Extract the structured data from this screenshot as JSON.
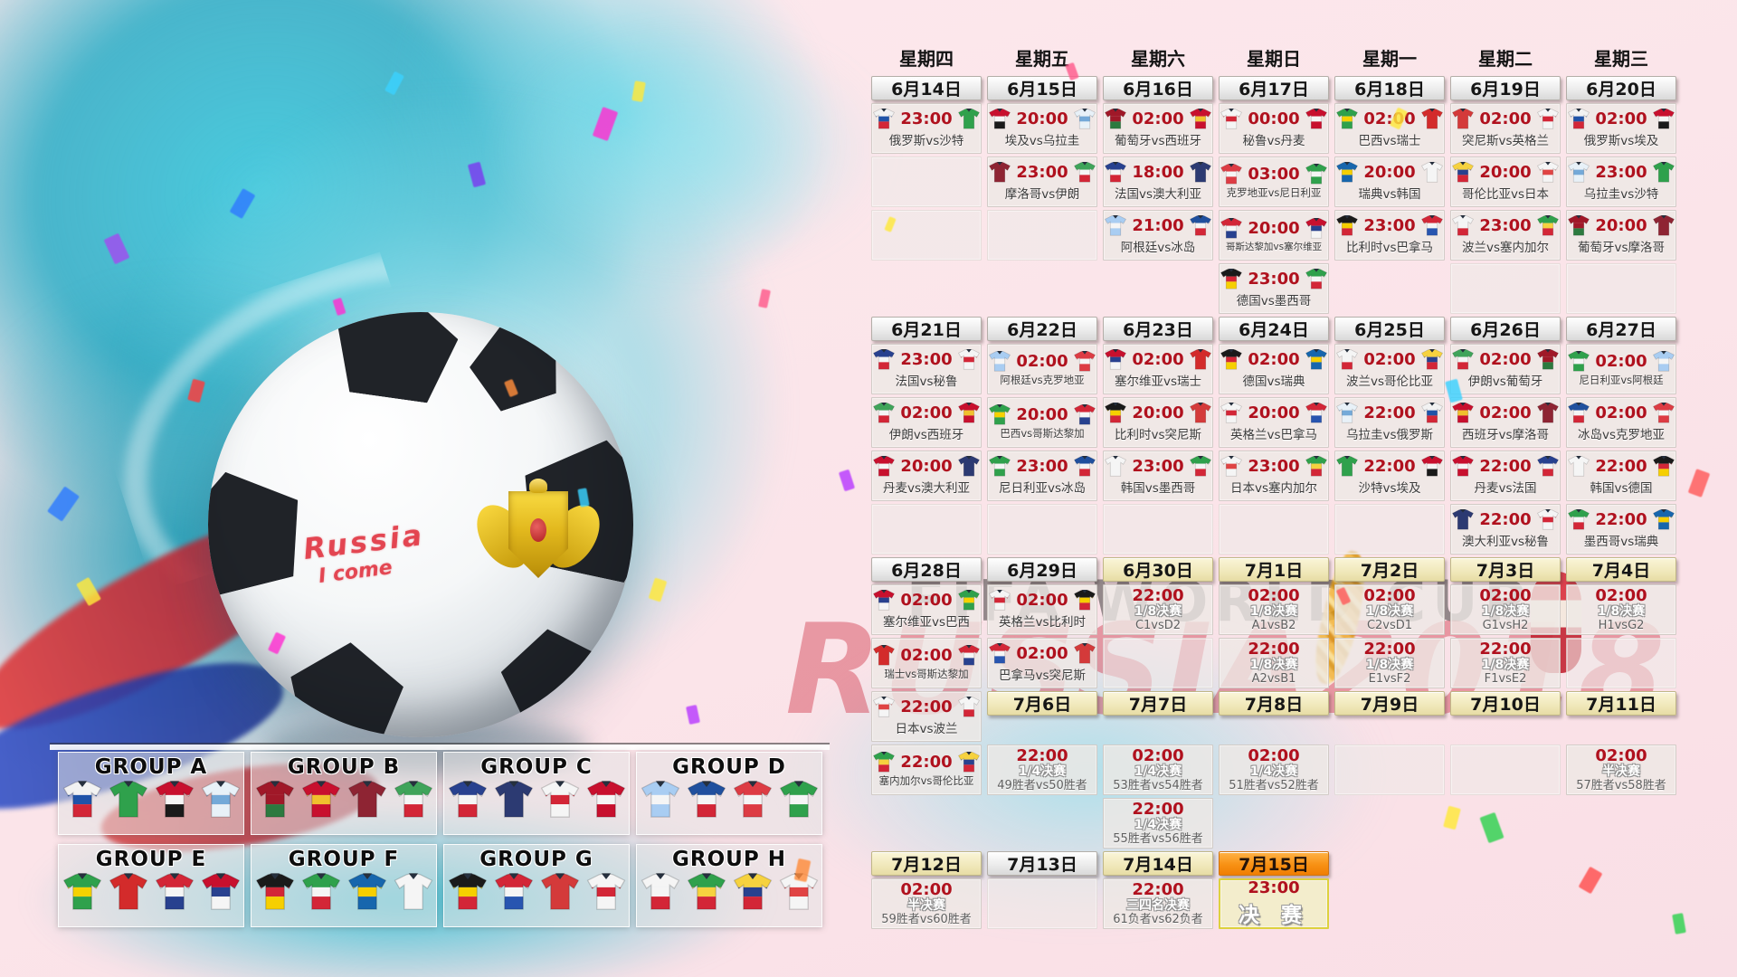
{
  "watermarks": {
    "fifa": "FIFA WORLD CUP",
    "russia": "RUSSIA2018"
  },
  "ball": {
    "graffiti_1": "Russia",
    "graffiti_2": "I come"
  },
  "teams": {
    "russia": {
      "name": "俄罗斯",
      "colors": [
        "#f2f2f2",
        "#1f53a8",
        "#d32637"
      ]
    },
    "saudi": {
      "name": "沙特",
      "colors": [
        "#2fa14c"
      ]
    },
    "egypt": {
      "name": "埃及",
      "colors": [
        "#c8102e",
        "#f5f5f5",
        "#1a1a1a"
      ]
    },
    "uruguay": {
      "name": "乌拉圭",
      "colors": [
        "#e8f1f8",
        "#74a9d8",
        "#e8f1f8"
      ]
    },
    "portugal": {
      "name": "葡萄牙",
      "colors": [
        "#a01828",
        "#a01828",
        "#2c7a3f"
      ]
    },
    "spain": {
      "name": "西班牙",
      "colors": [
        "#c8102e",
        "#f0c02e",
        "#c8102e"
      ]
    },
    "morocco": {
      "name": "摩洛哥",
      "colors": [
        "#8e2433"
      ]
    },
    "iran": {
      "name": "伊朗",
      "colors": [
        "#3fa45a",
        "#f5f5f5",
        "#d32637"
      ]
    },
    "france": {
      "name": "法国",
      "colors": [
        "#28418f",
        "#f5f5f5",
        "#d32637"
      ]
    },
    "australia": {
      "name": "澳大利亚",
      "colors": [
        "#2c3a72"
      ]
    },
    "peru": {
      "name": "秘鲁",
      "colors": [
        "#f5f5f5",
        "#d32637",
        "#f5f5f5"
      ]
    },
    "denmark": {
      "name": "丹麦",
      "colors": [
        "#c8102e",
        "#f5f5f5",
        "#c8102e"
      ]
    },
    "croatia": {
      "name": "克罗地亚",
      "colors": [
        "#dd3c44",
        "#f5f5f5",
        "#dd3c44"
      ]
    },
    "nigeria": {
      "name": "尼日利亚",
      "colors": [
        "#2fa14c",
        "#f5f5f5",
        "#2fa14c"
      ]
    },
    "brazil": {
      "name": "巴西",
      "colors": [
        "#2fa14c",
        "#f6d200",
        "#2fa14c"
      ]
    },
    "switzerland": {
      "name": "瑞士",
      "colors": [
        "#d32b2b"
      ]
    },
    "sweden": {
      "name": "瑞典",
      "colors": [
        "#1766ad",
        "#f6cf00",
        "#1766ad"
      ]
    },
    "korea": {
      "name": "韩国",
      "colors": [
        "#f5f5f5"
      ]
    },
    "tunisia": {
      "name": "突尼斯",
      "colors": [
        "#d43a3a"
      ]
    },
    "england": {
      "name": "英格兰",
      "colors": [
        "#f5f5f5",
        "#d32637",
        "#f5f5f5"
      ]
    },
    "colombia": {
      "name": "哥伦比亚",
      "colors": [
        "#f6d23f",
        "#28418f",
        "#d32637"
      ]
    },
    "japan": {
      "name": "日本",
      "colors": [
        "#f5f5f5",
        "#e04444",
        "#f5f5f5"
      ]
    },
    "poland": {
      "name": "波兰",
      "colors": [
        "#f5f5f5",
        "#f5f5f5",
        "#d32637"
      ]
    },
    "senegal": {
      "name": "塞内加尔",
      "colors": [
        "#2fa14c",
        "#f6d23f",
        "#d32637"
      ]
    },
    "germany": {
      "name": "德国",
      "colors": [
        "#1a1a1a",
        "#d32637",
        "#f6cf00"
      ]
    },
    "mexico": {
      "name": "墨西哥",
      "colors": [
        "#2fa14c",
        "#f5f5f5",
        "#d32637"
      ]
    },
    "argentina": {
      "name": "阿根廷",
      "colors": [
        "#a9cdf2",
        "#f5f5f5",
        "#a9cdf2"
      ]
    },
    "iceland": {
      "name": "冰岛",
      "colors": [
        "#20509e",
        "#f5f5f5",
        "#d32637"
      ]
    },
    "costarica": {
      "name": "哥斯达黎加",
      "colors": [
        "#d32637",
        "#f5f5f5",
        "#28418f"
      ]
    },
    "serbia": {
      "name": "塞尔维亚",
      "colors": [
        "#c8102e",
        "#28418f",
        "#f5f5f5"
      ]
    },
    "belgium": {
      "name": "比利时",
      "colors": [
        "#1a1a1a",
        "#f6cf00",
        "#d32637"
      ]
    },
    "panama": {
      "name": "巴拿马",
      "colors": [
        "#d32637",
        "#f5f5f5",
        "#2855b0"
      ]
    }
  },
  "groups": [
    {
      "name": "GROUP A",
      "teams": [
        "russia",
        "saudi",
        "egypt",
        "uruguay"
      ]
    },
    {
      "name": "GROUP B",
      "teams": [
        "portugal",
        "spain",
        "morocco",
        "iran"
      ]
    },
    {
      "name": "GROUP C",
      "teams": [
        "france",
        "australia",
        "peru",
        "denmark"
      ]
    },
    {
      "name": "GROUP D",
      "teams": [
        "argentina",
        "iceland",
        "croatia",
        "nigeria"
      ]
    },
    {
      "name": "GROUP E",
      "teams": [
        "brazil",
        "switzerland",
        "costarica",
        "serbia"
      ]
    },
    {
      "name": "GROUP F",
      "teams": [
        "germany",
        "mexico",
        "sweden",
        "korea"
      ]
    },
    {
      "name": "GROUP G",
      "teams": [
        "belgium",
        "panama",
        "tunisia",
        "england"
      ]
    },
    {
      "name": "GROUP H",
      "teams": [
        "poland",
        "senegal",
        "colombia",
        "japan"
      ]
    }
  ],
  "calendar": {
    "rows": [
      [
        {
          "t": "wd",
          "label": "星期四"
        },
        {
          "t": "wd",
          "label": "星期五"
        },
        {
          "t": "wd",
          "label": "星期六"
        },
        {
          "t": "wd",
          "label": "星期日"
        },
        {
          "t": "wd",
          "label": "星期一"
        },
        {
          "t": "wd",
          "label": "星期二"
        },
        {
          "t": "wd",
          "label": "星期三"
        }
      ],
      [
        {
          "t": "date",
          "label": "6月14日",
          "style": "white"
        },
        {
          "t": "date",
          "label": "6月15日",
          "style": "white"
        },
        {
          "t": "date",
          "label": "6月16日",
          "style": "white"
        },
        {
          "t": "date",
          "label": "6月17日",
          "style": "white"
        },
        {
          "t": "date",
          "label": "6月18日",
          "style": "white"
        },
        {
          "t": "date",
          "label": "6月19日",
          "style": "white"
        },
        {
          "t": "date",
          "label": "6月20日",
          "style": "white"
        }
      ],
      [
        {
          "t": "match",
          "time": "23:00",
          "home": "russia",
          "away": "saudi",
          "label": "俄罗斯vs沙特"
        },
        {
          "t": "match",
          "time": "20:00",
          "home": "egypt",
          "away": "uruguay",
          "label": "埃及vs乌拉圭"
        },
        {
          "t": "match",
          "time": "02:00",
          "home": "portugal",
          "away": "spain",
          "label": "葡萄牙vs西班牙"
        },
        {
          "t": "match",
          "time": "00:00",
          "home": "peru",
          "away": "denmark",
          "label": "秘鲁vs丹麦"
        },
        {
          "t": "match",
          "time": "02:00",
          "home": "brazil",
          "away": "switzerland",
          "label": "巴西vs瑞士"
        },
        {
          "t": "match",
          "time": "02:00",
          "home": "tunisia",
          "away": "england",
          "label": "突尼斯vs英格兰"
        },
        {
          "t": "match",
          "time": "02:00",
          "home": "russia",
          "away": "egypt",
          "label": "俄罗斯vs埃及"
        }
      ],
      [
        {
          "t": "empty"
        },
        {
          "t": "match",
          "time": "23:00",
          "home": "morocco",
          "away": "iran",
          "label": "摩洛哥vs伊朗"
        },
        {
          "t": "match",
          "time": "18:00",
          "home": "france",
          "away": "australia",
          "label": "法国vs澳大利亚"
        },
        {
          "t": "match",
          "time": "03:00",
          "home": "croatia",
          "away": "nigeria",
          "label": "克罗地亚vs尼日利亚"
        },
        {
          "t": "match",
          "time": "20:00",
          "home": "sweden",
          "away": "korea",
          "label": "瑞典vs韩国"
        },
        {
          "t": "match",
          "time": "20:00",
          "home": "colombia",
          "away": "japan",
          "label": "哥伦比亚vs日本"
        },
        {
          "t": "match",
          "time": "23:00",
          "home": "uruguay",
          "away": "saudi",
          "label": "乌拉圭vs沙特"
        }
      ],
      [
        {
          "t": "empty"
        },
        {
          "t": "empty"
        },
        {
          "t": "match",
          "time": "21:00",
          "home": "argentina",
          "away": "iceland",
          "label": "阿根廷vs冰岛"
        },
        {
          "t": "match",
          "time": "20:00",
          "home": "costarica",
          "away": "serbia",
          "label": "哥斯达黎加vs塞尔维亚"
        },
        {
          "t": "match",
          "time": "23:00",
          "home": "belgium",
          "away": "panama",
          "label": "比利时vs巴拿马"
        },
        {
          "t": "match",
          "time": "23:00",
          "home": "poland",
          "away": "senegal",
          "label": "波兰vs塞内加尔"
        },
        {
          "t": "match",
          "time": "20:00",
          "home": "portugal",
          "away": "morocco",
          "label": "葡萄牙vs摩洛哥"
        }
      ],
      [
        {
          "t": "blank"
        },
        {
          "t": "blank"
        },
        {
          "t": "blank"
        },
        {
          "t": "match",
          "time": "23:00",
          "home": "germany",
          "away": "mexico",
          "label": "德国vs墨西哥"
        },
        {
          "t": "blank"
        },
        {
          "t": "empty"
        },
        {
          "t": "empty"
        }
      ],
      [
        {
          "t": "date",
          "label": "6月21日",
          "style": "white"
        },
        {
          "t": "date",
          "label": "6月22日",
          "style": "white"
        },
        {
          "t": "date",
          "label": "6月23日",
          "style": "white"
        },
        {
          "t": "date",
          "label": "6月24日",
          "style": "white"
        },
        {
          "t": "date",
          "label": "6月25日",
          "style": "white"
        },
        {
          "t": "date",
          "label": "6月26日",
          "style": "white"
        },
        {
          "t": "date",
          "label": "6月27日",
          "style": "white"
        }
      ],
      [
        {
          "t": "match",
          "time": "23:00",
          "home": "france",
          "away": "peru",
          "label": "法国vs秘鲁"
        },
        {
          "t": "match",
          "time": "02:00",
          "home": "argentina",
          "away": "croatia",
          "label": "阿根廷vs克罗地亚"
        },
        {
          "t": "match",
          "time": "02:00",
          "home": "serbia",
          "away": "switzerland",
          "label": "塞尔维亚vs瑞士"
        },
        {
          "t": "match",
          "time": "02:00",
          "home": "germany",
          "away": "sweden",
          "label": "德国vs瑞典"
        },
        {
          "t": "match",
          "time": "02:00",
          "home": "poland",
          "away": "colombia",
          "label": "波兰vs哥伦比亚"
        },
        {
          "t": "match",
          "time": "02:00",
          "home": "iran",
          "away": "portugal",
          "label": "伊朗vs葡萄牙"
        },
        {
          "t": "match",
          "time": "02:00",
          "home": "nigeria",
          "away": "argentina",
          "label": "尼日利亚vs阿根廷"
        }
      ],
      [
        {
          "t": "match",
          "time": "02:00",
          "home": "iran",
          "away": "spain",
          "label": "伊朗vs西班牙"
        },
        {
          "t": "match",
          "time": "20:00",
          "home": "brazil",
          "away": "costarica",
          "label": "巴西vs哥斯达黎加"
        },
        {
          "t": "match",
          "time": "20:00",
          "home": "belgium",
          "away": "tunisia",
          "label": "比利时vs突尼斯"
        },
        {
          "t": "match",
          "time": "20:00",
          "home": "england",
          "away": "panama",
          "label": "英格兰vs巴拿马"
        },
        {
          "t": "match",
          "time": "22:00",
          "home": "uruguay",
          "away": "russia",
          "label": "乌拉圭vs俄罗斯"
        },
        {
          "t": "match",
          "time": "02:00",
          "home": "spain",
          "away": "morocco",
          "label": "西班牙vs摩洛哥"
        },
        {
          "t": "match",
          "time": "02:00",
          "home": "iceland",
          "away": "croatia",
          "label": "冰岛vs克罗地亚"
        }
      ],
      [
        {
          "t": "match",
          "time": "20:00",
          "home": "denmark",
          "away": "australia",
          "label": "丹麦vs澳大利亚"
        },
        {
          "t": "match",
          "time": "23:00",
          "home": "nigeria",
          "away": "iceland",
          "label": "尼日利亚vs冰岛"
        },
        {
          "t": "match",
          "time": "23:00",
          "home": "korea",
          "away": "mexico",
          "label": "韩国vs墨西哥"
        },
        {
          "t": "match",
          "time": "23:00",
          "home": "japan",
          "away": "senegal",
          "label": "日本vs塞内加尔"
        },
        {
          "t": "match",
          "time": "22:00",
          "home": "saudi",
          "away": "egypt",
          "label": "沙特vs埃及"
        },
        {
          "t": "match",
          "time": "22:00",
          "home": "denmark",
          "away": "france",
          "label": "丹麦vs法国"
        },
        {
          "t": "match",
          "time": "22:00",
          "home": "korea",
          "away": "germany",
          "label": "韩国vs德国"
        }
      ],
      [
        {
          "t": "empty"
        },
        {
          "t": "empty"
        },
        {
          "t": "empty"
        },
        {
          "t": "empty"
        },
        {
          "t": "empty"
        },
        {
          "t": "match",
          "time": "22:00",
          "home": "australia",
          "away": "peru",
          "label": "澳大利亚vs秘鲁"
        },
        {
          "t": "match",
          "time": "22:00",
          "home": "mexico",
          "away": "sweden",
          "label": "墨西哥vs瑞典"
        }
      ],
      [
        {
          "t": "date",
          "label": "6月28日",
          "style": "white"
        },
        {
          "t": "date",
          "label": "6月29日",
          "style": "white"
        },
        {
          "t": "date",
          "label": "6月30日",
          "style": "cream"
        },
        {
          "t": "date",
          "label": "7月1日",
          "style": "cream"
        },
        {
          "t": "date",
          "label": "7月2日",
          "style": "cream"
        },
        {
          "t": "date",
          "label": "7月3日",
          "style": "cream"
        },
        {
          "t": "date",
          "label": "7月4日",
          "style": "cream"
        }
      ],
      [
        {
          "t": "match",
          "time": "02:00",
          "home": "serbia",
          "away": "brazil",
          "label": "塞尔维亚vs巴西"
        },
        {
          "t": "match",
          "time": "02:00",
          "home": "england",
          "away": "belgium",
          "label": "英格兰vs比利时"
        },
        {
          "t": "knock",
          "time": "22:00",
          "stage": "1/8决赛",
          "pair": "C1vsD2"
        },
        {
          "t": "knock",
          "time": "02:00",
          "stage": "1/8决赛",
          "pair": "A1vsB2"
        },
        {
          "t": "knock",
          "time": "02:00",
          "stage": "1/8决赛",
          "pair": "C2vsD1"
        },
        {
          "t": "knock",
          "time": "02:00",
          "stage": "1/8决赛",
          "pair": "G1vsH2"
        },
        {
          "t": "knock",
          "time": "02:00",
          "stage": "1/8决赛",
          "pair": "H1vsG2"
        }
      ],
      [
        {
          "t": "match",
          "time": "02:00",
          "home": "switzerland",
          "away": "costarica",
          "label": "瑞士vs哥斯达黎加"
        },
        {
          "t": "match",
          "time": "02:00",
          "home": "panama",
          "away": "tunisia",
          "label": "巴拿马vs突尼斯"
        },
        {
          "t": "empty"
        },
        {
          "t": "knock",
          "time": "22:00",
          "stage": "1/8决赛",
          "pair": "A2vsB1"
        },
        {
          "t": "knock",
          "time": "22:00",
          "stage": "1/8决赛",
          "pair": "E1vsF2"
        },
        {
          "t": "knock",
          "time": "22:00",
          "stage": "1/8决赛",
          "pair": "F1vsE2"
        },
        {
          "t": "empty"
        }
      ],
      [
        {
          "t": "match",
          "time": "22:00",
          "home": "japan",
          "away": "poland",
          "label": "日本vs波兰"
        },
        {
          "t": "date",
          "label": "7月6日",
          "style": "cream"
        },
        {
          "t": "date",
          "label": "7月7日",
          "style": "cream"
        },
        {
          "t": "date",
          "label": "7月8日",
          "style": "cream"
        },
        {
          "t": "date",
          "label": "7月9日",
          "style": "cream"
        },
        {
          "t": "date",
          "label": "7月10日",
          "style": "cream"
        },
        {
          "t": "date",
          "label": "7月11日",
          "style": "cream"
        }
      ],
      [
        {
          "t": "match",
          "time": "22:00",
          "home": "senegal",
          "away": "colombia",
          "label": "塞内加尔vs哥伦比亚"
        },
        {
          "t": "knock",
          "time": "22:00",
          "stage": "1/4决赛",
          "pair": "49胜者vs50胜者"
        },
        {
          "t": "knock",
          "time": "02:00",
          "stage": "1/4决赛",
          "pair": "53胜者vs54胜者"
        },
        {
          "t": "knock",
          "time": "02:00",
          "stage": "1/4决赛",
          "pair": "51胜者vs52胜者"
        },
        {
          "t": "empty"
        },
        {
          "t": "empty"
        },
        {
          "t": "knock",
          "time": "02:00",
          "stage": "半决赛",
          "pair": "57胜者vs58胜者"
        }
      ],
      [
        {
          "t": "blank"
        },
        {
          "t": "blank"
        },
        {
          "t": "knock",
          "time": "22:00",
          "stage": "1/4决赛",
          "pair": "55胜者vs56胜者"
        },
        {
          "t": "blank"
        },
        {
          "t": "blank"
        },
        {
          "t": "blank"
        },
        {
          "t": "blank"
        }
      ],
      [
        {
          "t": "date",
          "label": "7月12日",
          "style": "cream"
        },
        {
          "t": "date",
          "label": "7月13日",
          "style": "white"
        },
        {
          "t": "date",
          "label": "7月14日",
          "style": "cream"
        },
        {
          "t": "date",
          "label": "7月15日",
          "style": "orange"
        },
        {
          "t": "blank"
        },
        {
          "t": "blank"
        },
        {
          "t": "blank"
        }
      ],
      [
        {
          "t": "knock",
          "time": "02:00",
          "stage": "半决赛",
          "pair": "59胜者vs60胜者"
        },
        {
          "t": "empty"
        },
        {
          "t": "knock",
          "time": "22:00",
          "stage": "三四名决赛",
          "pair": "61负者vs62负者"
        },
        {
          "t": "final",
          "time": "23:00",
          "stage": "决 赛"
        },
        {
          "t": "blank"
        },
        {
          "t": "blank"
        },
        {
          "t": "blank"
        }
      ]
    ]
  }
}
